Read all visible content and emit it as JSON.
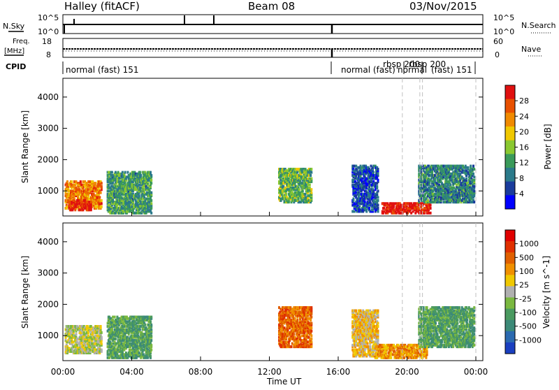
{
  "header": {
    "station": "Halley (fitACF)",
    "beam": "Beam 08",
    "date": "03/Nov/2015"
  },
  "nsky": {
    "label": "N.Sky",
    "ticks": [
      "10^5",
      "10^0"
    ]
  },
  "nsearch": {
    "label": "N.Search",
    "ticks": [
      "10^5",
      "10^0"
    ]
  },
  "freq": {
    "label_top": "Freq.",
    "label_unit": "[MHz]",
    "ticks": [
      "18",
      "8"
    ]
  },
  "nave": {
    "label": "Nave",
    "ticks": [
      "60",
      "0"
    ]
  },
  "cpid": {
    "label": "CPID",
    "segments": [
      "normal (fast) 151",
      "normal (fast)",
      "rbsp 200",
      "normal",
      "rbsp 200",
      "(fast) 151"
    ]
  },
  "colors": {
    "power_scale": [
      "#0000ff",
      "#1a3c9c",
      "#2b7a8a",
      "#3a9a5a",
      "#8ac830",
      "#f0c800",
      "#f08a00",
      "#e85000",
      "#e01010"
    ],
    "velocity_scale": [
      "#1a3fc0",
      "#2b6ab0",
      "#3c8a78",
      "#4a9a60",
      "#7ab840",
      "#b0b0b0",
      "#f0c800",
      "#f09000",
      "#e06000",
      "#e03000",
      "#e00000"
    ]
  },
  "chart_data": [
    {
      "type": "heatmap",
      "panel": "power",
      "xlabel": "",
      "ylabel": "Slant Range [km]",
      "x_ticks": [
        "00:00",
        "04:00",
        "08:00",
        "12:00",
        "16:00",
        "20:00",
        "00:00"
      ],
      "xlim_hours": [
        0,
        24
      ],
      "y_ticks": [
        "1000",
        "2000",
        "3000",
        "4000"
      ],
      "ylim": [
        200,
        4600
      ],
      "colorbar": {
        "label": "Power [dB]",
        "ticks": [
          "4",
          "8",
          "12",
          "16",
          "20",
          "24",
          "28"
        ],
        "range": [
          0,
          32
        ]
      },
      "echo_regions": [
        {
          "t0": 0.1,
          "t1": 2.2,
          "r0": 400,
          "r1": 1300,
          "level": 24
        },
        {
          "t0": 0.3,
          "t1": 1.6,
          "r0": 350,
          "r1": 700,
          "level": 30
        },
        {
          "t0": 2.5,
          "t1": 5.0,
          "r0": 250,
          "r1": 1600,
          "level": 12
        },
        {
          "t0": 12.3,
          "t1": 14.2,
          "r0": 600,
          "r1": 1700,
          "level": 14
        },
        {
          "t0": 16.5,
          "t1": 18.0,
          "r0": 300,
          "r1": 1800,
          "level": 6
        },
        {
          "t0": 18.2,
          "t1": 21.0,
          "r0": 250,
          "r1": 600,
          "level": 30
        },
        {
          "t0": 20.3,
          "t1": 23.5,
          "r0": 600,
          "r1": 1800,
          "level": 10
        }
      ]
    },
    {
      "type": "heatmap",
      "panel": "velocity",
      "xlabel": "Time UT",
      "ylabel": "Slant Range [km]",
      "x_ticks": [
        "00:00",
        "04:00",
        "08:00",
        "12:00",
        "16:00",
        "20:00",
        "00:00"
      ],
      "xlim_hours": [
        0,
        24
      ],
      "y_ticks": [
        "1000",
        "2000",
        "3000",
        "4000"
      ],
      "ylim": [
        200,
        4600
      ],
      "colorbar": {
        "label": "Velocity [m s^-1]",
        "ticks": [
          "1000",
          "500",
          "100",
          "25",
          "-25",
          "-100",
          "-500",
          "-1000"
        ]
      },
      "echo_regions": [
        {
          "t0": 0.1,
          "t1": 2.2,
          "r0": 400,
          "r1": 1300,
          "level": 5
        },
        {
          "t0": 2.5,
          "t1": 5.0,
          "r0": 250,
          "r1": 1600,
          "level": 3
        },
        {
          "t0": 12.3,
          "t1": 14.2,
          "r0": 600,
          "r1": 1900,
          "level": 8
        },
        {
          "t0": 16.5,
          "t1": 18.0,
          "r0": 300,
          "r1": 1800,
          "level": 6
        },
        {
          "t0": 17.8,
          "t1": 20.8,
          "r0": 250,
          "r1": 700,
          "level": 7
        },
        {
          "t0": 20.3,
          "t1": 23.5,
          "r0": 600,
          "r1": 1900,
          "level": 3
        }
      ]
    }
  ]
}
